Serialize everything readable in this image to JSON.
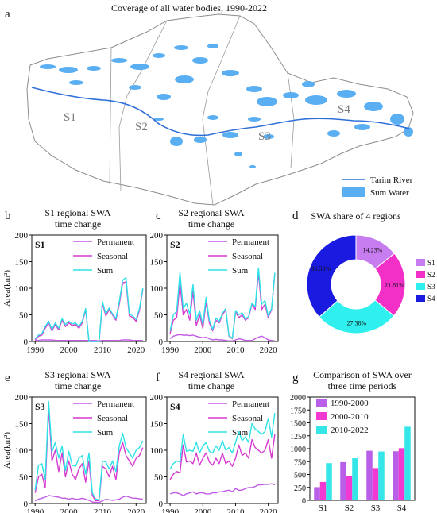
{
  "colors": {
    "sum": "#2de2e6",
    "seasonal": "#d63bd0",
    "permanent": "#c25ce6",
    "river": "#2f6fd9",
    "water": "#5aaef2",
    "s1": "#c77cf0",
    "s2": "#f230c8",
    "s3": "#2ff0ee",
    "s4": "#1a1ae0",
    "bar_1990": "#b85ee8",
    "bar_2000": "#f23ad2",
    "bar_2010": "#35e6e8"
  },
  "panel_letters": {
    "a": "a",
    "b": "b",
    "c": "c",
    "d": "d",
    "e": "e",
    "f": "f",
    "g": "g"
  },
  "map": {
    "title": "Coverage of all water bodies, 1990-2022",
    "region_labels": [
      "S1",
      "S2",
      "S3",
      "S4"
    ],
    "legend": {
      "river": "Tarim River",
      "water": "Sum Water"
    }
  },
  "legend_labels": {
    "permanent": "Permanent",
    "seasonal": "Seasonal",
    "sum": "Sum"
  },
  "chart_data": [
    {
      "panel": "b",
      "type": "line",
      "title": "S1 regional SWA\ntime change",
      "inner_label": "S1",
      "ylabel": "Area(km²)",
      "ylim": [
        0,
        200
      ],
      "yticks": [
        0,
        50,
        100,
        150,
        200
      ],
      "xticks": [
        1990,
        2000,
        2010,
        2020
      ],
      "series": [
        {
          "name": "Permanent",
          "x": [
            1990,
            1991,
            1992,
            1993,
            1994,
            1995,
            1996,
            1997,
            1998,
            1999,
            2000,
            2001,
            2002,
            2003,
            2004,
            2005,
            2006,
            2007,
            2008,
            2009,
            2010,
            2011,
            2012,
            2013,
            2014,
            2015,
            2016,
            2017,
            2018,
            2019,
            2020,
            2021,
            2022
          ],
          "values": [
            2,
            2,
            3,
            3,
            3,
            3,
            2,
            2,
            2,
            2,
            2,
            2,
            2,
            2,
            2,
            2,
            2,
            2,
            2,
            1,
            2,
            2,
            2,
            2,
            2,
            2,
            3,
            3,
            3,
            2,
            2,
            2,
            2
          ]
        },
        {
          "name": "Seasonal",
          "x": [
            1990,
            1991,
            1992,
            1993,
            1994,
            1995,
            1996,
            1997,
            1998,
            1999,
            2000,
            2001,
            2002,
            2003,
            2004,
            2005,
            2006,
            2007,
            2008,
            2009,
            2010,
            2011,
            2012,
            2013,
            2014,
            2015,
            2016,
            2017,
            2018,
            2019,
            2020,
            2021,
            2022
          ],
          "values": [
            3,
            10,
            12,
            25,
            35,
            20,
            32,
            22,
            40,
            28,
            35,
            30,
            32,
            25,
            35,
            60,
            0,
            0,
            0,
            0,
            72,
            48,
            60,
            50,
            40,
            70,
            110,
            112,
            48,
            45,
            38,
            58,
            98
          ]
        },
        {
          "name": "Sum",
          "x": [
            1990,
            1991,
            1992,
            1993,
            1994,
            1995,
            1996,
            1997,
            1998,
            1999,
            2000,
            2001,
            2002,
            2003,
            2004,
            2005,
            2006,
            2007,
            2008,
            2009,
            2010,
            2011,
            2012,
            2013,
            2014,
            2015,
            2016,
            2017,
            2018,
            2019,
            2020,
            2021,
            2022
          ],
          "values": [
            5,
            12,
            15,
            28,
            38,
            23,
            35,
            25,
            43,
            32,
            38,
            33,
            35,
            28,
            38,
            62,
            0,
            0,
            0,
            0,
            75,
            52,
            63,
            52,
            43,
            75,
            115,
            120,
            52,
            48,
            42,
            62,
            100
          ]
        }
      ]
    },
    {
      "panel": "c",
      "type": "line",
      "title": "S2 regional SWA\ntime change",
      "inner_label": "S2",
      "ylabel": "",
      "ylim": [
        0,
        200
      ],
      "yticks": [
        0,
        50,
        100,
        150,
        200
      ],
      "xticks": [
        1990,
        2000,
        2010,
        2020
      ],
      "series": [
        {
          "name": "Permanent",
          "x": [
            1990,
            1991,
            1992,
            1993,
            1994,
            1995,
            1996,
            1997,
            1998,
            1999,
            2000,
            2001,
            2002,
            2003,
            2004,
            2005,
            2006,
            2007,
            2008,
            2009,
            2010,
            2011,
            2012,
            2013,
            2014,
            2015,
            2016,
            2017,
            2018,
            2019,
            2020,
            2021,
            2022
          ],
          "values": [
            5,
            10,
            12,
            13,
            12,
            12,
            11,
            12,
            10,
            8,
            7,
            8,
            5,
            3,
            4,
            3,
            3,
            2,
            1,
            1,
            3,
            5,
            4,
            2,
            2,
            2,
            5,
            8,
            10,
            7,
            3,
            2,
            1
          ]
        },
        {
          "name": "Seasonal",
          "x": [
            1990,
            1991,
            1992,
            1993,
            1994,
            1995,
            1996,
            1997,
            1998,
            1999,
            2000,
            2001,
            2002,
            2003,
            2004,
            2005,
            2006,
            2007,
            2008,
            2009,
            2010,
            2011,
            2012,
            2013,
            2014,
            2015,
            2016,
            2017,
            2018,
            2019,
            2020,
            2021,
            2022
          ],
          "values": [
            15,
            40,
            45,
            110,
            50,
            60,
            40,
            95,
            30,
            50,
            25,
            75,
            35,
            20,
            40,
            35,
            50,
            60,
            10,
            5,
            55,
            45,
            50,
            40,
            45,
            70,
            60,
            130,
            60,
            70,
            45,
            60,
            128
          ]
        },
        {
          "name": "Sum",
          "x": [
            1990,
            1991,
            1992,
            1993,
            1994,
            1995,
            1996,
            1997,
            1998,
            1999,
            2000,
            2001,
            2002,
            2003,
            2004,
            2005,
            2006,
            2007,
            2008,
            2009,
            2010,
            2011,
            2012,
            2013,
            2014,
            2015,
            2016,
            2017,
            2018,
            2019,
            2020,
            2021,
            2022
          ],
          "values": [
            20,
            50,
            57,
            130,
            62,
            72,
            51,
            107,
            40,
            58,
            32,
            83,
            40,
            23,
            44,
            38,
            53,
            62,
            11,
            6,
            58,
            50,
            54,
            42,
            47,
            72,
            65,
            138,
            70,
            77,
            48,
            62,
            129
          ]
        }
      ]
    },
    {
      "panel": "d",
      "type": "pie",
      "title": "SWA share of 4 regions",
      "categories": [
        "S1",
        "S2",
        "S3",
        "S4"
      ],
      "values": [
        14.23,
        21.81,
        27.38,
        36.58
      ],
      "labels": [
        "14.23%",
        "21.81%",
        "27.38%",
        "36.58%"
      ]
    },
    {
      "panel": "e",
      "type": "line",
      "title": "S3 regional SWA\ntime change",
      "inner_label": "S3",
      "ylabel": "Area(km²)",
      "ylim": [
        0,
        200
      ],
      "yticks": [
        0,
        50,
        100,
        150,
        200
      ],
      "xticks": [
        1990,
        2000,
        2010,
        2020
      ],
      "series": [
        {
          "name": "Permanent",
          "x": [
            1990,
            1991,
            1992,
            1993,
            1994,
            1995,
            1996,
            1997,
            1998,
            1999,
            2000,
            2001,
            2002,
            2003,
            2004,
            2005,
            2006,
            2007,
            2008,
            2009,
            2010,
            2011,
            2012,
            2013,
            2014,
            2015,
            2016,
            2017,
            2018,
            2019,
            2020,
            2021,
            2022
          ],
          "values": [
            5,
            8,
            10,
            12,
            15,
            14,
            13,
            12,
            10,
            10,
            8,
            10,
            8,
            8,
            10,
            8,
            6,
            3,
            2,
            2,
            5,
            8,
            7,
            6,
            7,
            8,
            12,
            14,
            12,
            10,
            10,
            9,
            8
          ]
        },
        {
          "name": "Seasonal",
          "x": [
            1990,
            1991,
            1992,
            1993,
            1994,
            1995,
            1996,
            1997,
            1998,
            1999,
            2000,
            2001,
            2002,
            2003,
            2004,
            2005,
            2006,
            2007,
            2008,
            2009,
            2010,
            2011,
            2012,
            2013,
            2014,
            2015,
            2016,
            2017,
            2018,
            2019,
            2020,
            2021,
            2022
          ],
          "values": [
            20,
            50,
            55,
            30,
            180,
            80,
            100,
            60,
            95,
            50,
            80,
            55,
            45,
            65,
            75,
            40,
            80,
            15,
            5,
            5,
            70,
            65,
            50,
            70,
            45,
            95,
            115,
            90,
            80,
            70,
            85,
            90,
            105
          ]
        },
        {
          "name": "Sum",
          "x": [
            1990,
            1991,
            1992,
            1993,
            1994,
            1995,
            1996,
            1997,
            1998,
            1999,
            2000,
            2001,
            2002,
            2003,
            2004,
            2005,
            2006,
            2007,
            2008,
            2009,
            2010,
            2011,
            2012,
            2013,
            2014,
            2015,
            2016,
            2017,
            2018,
            2019,
            2020,
            2021,
            2022
          ],
          "values": [
            25,
            72,
            75,
            45,
            192,
            97,
            115,
            85,
            108,
            62,
            98,
            72,
            70,
            85,
            90,
            55,
            95,
            20,
            8,
            7,
            80,
            78,
            65,
            80,
            60,
            108,
            132,
            105,
            95,
            85,
            100,
            105,
            118
          ]
        }
      ]
    },
    {
      "panel": "f",
      "type": "line",
      "title": "S4 regional SWA\ntime change",
      "inner_label": "S4",
      "ylabel": "",
      "ylim": [
        0,
        200
      ],
      "yticks": [
        0,
        50,
        100,
        150,
        200
      ],
      "xticks": [
        1990,
        2000,
        2010,
        2020
      ],
      "series": [
        {
          "name": "Permanent",
          "x": [
            1990,
            1991,
            1992,
            1993,
            1994,
            1995,
            1996,
            1997,
            1998,
            1999,
            2000,
            2001,
            2002,
            2003,
            2004,
            2005,
            2006,
            2007,
            2008,
            2009,
            2010,
            2011,
            2012,
            2013,
            2014,
            2015,
            2016,
            2017,
            2018,
            2019,
            2020,
            2021,
            2022
          ],
          "values": [
            18,
            20,
            20,
            18,
            15,
            18,
            20,
            22,
            18,
            20,
            20,
            18,
            18,
            20,
            20,
            22,
            22,
            24,
            25,
            22,
            28,
            25,
            25,
            28,
            30,
            30,
            32,
            35,
            35,
            36,
            36,
            37,
            35
          ]
        },
        {
          "name": "Seasonal",
          "x": [
            1990,
            1991,
            1992,
            1993,
            1994,
            1995,
            1996,
            1997,
            1998,
            1999,
            2000,
            2001,
            2002,
            2003,
            2004,
            2005,
            2006,
            2007,
            2008,
            2009,
            2010,
            2011,
            2012,
            2013,
            2014,
            2015,
            2016,
            2017,
            2018,
            2019,
            2020,
            2021,
            2022
          ],
          "values": [
            45,
            55,
            60,
            58,
            110,
            78,
            80,
            75,
            95,
            72,
            85,
            95,
            78,
            72,
            85,
            75,
            95,
            75,
            80,
            70,
            85,
            110,
            90,
            95,
            85,
            120,
            105,
            100,
            95,
            100,
            120,
            85,
            130
          ]
        },
        {
          "name": "Sum",
          "x": [
            1990,
            1991,
            1992,
            1993,
            1994,
            1995,
            1996,
            1997,
            1998,
            1999,
            2000,
            2001,
            2002,
            2003,
            2004,
            2005,
            2006,
            2007,
            2008,
            2009,
            2010,
            2011,
            2012,
            2013,
            2014,
            2015,
            2016,
            2017,
            2018,
            2019,
            2020,
            2021,
            2022
          ],
          "values": [
            65,
            75,
            80,
            78,
            130,
            98,
            100,
            98,
            115,
            95,
            108,
            115,
            98,
            95,
            108,
            100,
            118,
            100,
            105,
            95,
            115,
            135,
            118,
            125,
            115,
            150,
            140,
            135,
            130,
            135,
            160,
            125,
            170
          ]
        }
      ]
    },
    {
      "panel": "g",
      "type": "bar",
      "title": "Comparison of SWA over\nthree time periods",
      "categories": [
        "S1",
        "S2",
        "S3",
        "S4"
      ],
      "ylim": [
        0,
        2000
      ],
      "yticks": [
        0,
        250,
        500,
        750,
        1000,
        1250,
        1500,
        1750,
        2000
      ],
      "series": [
        {
          "name": "1990-2000",
          "values": [
            255,
            740,
            960,
            950
          ]
        },
        {
          "name": "2000-2010",
          "values": [
            355,
            475,
            625,
            1010
          ]
        },
        {
          "name": "2010-2022",
          "values": [
            720,
            815,
            945,
            1425
          ]
        }
      ]
    }
  ]
}
